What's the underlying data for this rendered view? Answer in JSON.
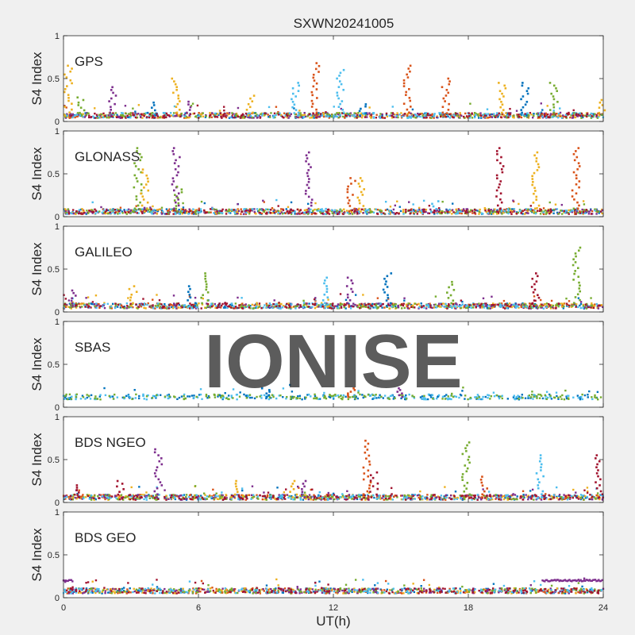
{
  "figure_title": "SXWN20241005",
  "watermark": "IONISE",
  "xlabel": "UT(h)",
  "ylabel": "S4 Index",
  "colors": {
    "series": [
      "#0072BD",
      "#D95319",
      "#EDB120",
      "#7E2F8E",
      "#77AC30",
      "#4DBEEE",
      "#A2142F"
    ],
    "axes": "#262626",
    "background": "#f0f0f0",
    "watermark": "#d9d9d9"
  },
  "chart_data": [
    {
      "type": "scatter",
      "title": "GPS",
      "xlim": [
        0,
        24
      ],
      "ylim": [
        0,
        1
      ],
      "xticks": [
        "0",
        "6",
        "12",
        "18",
        "24"
      ],
      "yticks": [
        "0",
        "0.5",
        "1"
      ],
      "baseline": 0.07,
      "peaks": [
        [
          0.2,
          0.65,
          2
        ],
        [
          0.8,
          0.28,
          4
        ],
        [
          2.2,
          0.4,
          3
        ],
        [
          3.9,
          0.22,
          0
        ],
        [
          5.0,
          0.5,
          2
        ],
        [
          5.6,
          0.23,
          3
        ],
        [
          8.3,
          0.3,
          2
        ],
        [
          10.3,
          0.45,
          5
        ],
        [
          11.2,
          0.68,
          1
        ],
        [
          12.3,
          0.6,
          5
        ],
        [
          13.3,
          0.2,
          0
        ],
        [
          15.3,
          0.65,
          1
        ],
        [
          17.0,
          0.5,
          1
        ],
        [
          19.5,
          0.45,
          2
        ],
        [
          20.5,
          0.45,
          0
        ],
        [
          21.8,
          0.45,
          4
        ],
        [
          23.9,
          0.25,
          2
        ]
      ]
    },
    {
      "type": "scatter",
      "title": "GLONASS",
      "xlim": [
        0,
        24
      ],
      "ylim": [
        0,
        1
      ],
      "xticks": [
        "0",
        "6",
        "12",
        "18",
        "24"
      ],
      "yticks": [
        "0",
        "0.5",
        "1"
      ],
      "baseline": 0.06,
      "peaks": [
        [
          3.3,
          0.8,
          4
        ],
        [
          3.6,
          0.55,
          2
        ],
        [
          5.0,
          0.8,
          3
        ],
        [
          5.1,
          0.35,
          4
        ],
        [
          10.9,
          0.75,
          3
        ],
        [
          12.8,
          0.45,
          1
        ],
        [
          13.2,
          0.45,
          2
        ],
        [
          16.5,
          0.18,
          5
        ],
        [
          19.4,
          0.8,
          6
        ],
        [
          21.0,
          0.75,
          2
        ],
        [
          22.8,
          0.8,
          1
        ]
      ]
    },
    {
      "type": "scatter",
      "title": "GALILEO",
      "xlim": [
        0,
        24
      ],
      "ylim": [
        0,
        1
      ],
      "xticks": [
        "0",
        "6",
        "12",
        "18",
        "24"
      ],
      "yticks": [
        "0",
        "0.5",
        "1"
      ],
      "baseline": 0.07,
      "peaks": [
        [
          0.5,
          0.25,
          3
        ],
        [
          3.1,
          0.3,
          2
        ],
        [
          5.7,
          0.3,
          0
        ],
        [
          6.3,
          0.45,
          4
        ],
        [
          11.6,
          0.4,
          5
        ],
        [
          12.7,
          0.4,
          3
        ],
        [
          14.4,
          0.45,
          0
        ],
        [
          17.2,
          0.35,
          4
        ],
        [
          21.0,
          0.45,
          6
        ],
        [
          22.8,
          0.75,
          4
        ]
      ]
    },
    {
      "type": "scatter",
      "title": "SBAS",
      "xlim": [
        0,
        24
      ],
      "ylim": [
        0,
        1
      ],
      "xticks": [
        "0",
        "6",
        "12",
        "18",
        "24"
      ],
      "yticks": [
        "0",
        "0.5",
        "1"
      ],
      "baseline": 0.12,
      "peaks": [
        [
          9.0,
          0.22,
          0
        ],
        [
          12.8,
          0.22,
          1
        ],
        [
          15.0,
          0.22,
          3
        ]
      ]
    },
    {
      "type": "scatter",
      "title": "BDS NGEO",
      "xlim": [
        0,
        24
      ],
      "ylim": [
        0,
        1
      ],
      "xticks": [
        "0",
        "6",
        "12",
        "18",
        "24"
      ],
      "yticks": [
        "0",
        "0.5",
        "1"
      ],
      "baseline": 0.06,
      "peaks": [
        [
          0.7,
          0.2,
          6
        ],
        [
          2.5,
          0.25,
          6
        ],
        [
          4.2,
          0.62,
          3
        ],
        [
          7.6,
          0.25,
          2
        ],
        [
          10.2,
          0.25,
          2
        ],
        [
          10.7,
          0.25,
          3
        ],
        [
          13.5,
          0.72,
          1
        ],
        [
          13.8,
          0.35,
          6
        ],
        [
          17.9,
          0.7,
          4
        ],
        [
          18.7,
          0.3,
          1
        ],
        [
          21.2,
          0.55,
          5
        ],
        [
          23.8,
          0.55,
          6
        ]
      ]
    },
    {
      "type": "scatter",
      "title": "BDS GEO",
      "xlim": [
        0,
        24
      ],
      "ylim": [
        0,
        1
      ],
      "xticks": [
        "0",
        "6",
        "12",
        "18",
        "24"
      ],
      "yticks": [
        "0",
        "0.5",
        "1"
      ],
      "baseline": 0.08,
      "peaks": [],
      "segments": [
        {
          "x": [
            0.0,
            0.4
          ],
          "y": 0.2,
          "series": 3
        },
        {
          "x": [
            21.3,
            24.0
          ],
          "y": 0.2,
          "series": 3
        }
      ]
    }
  ]
}
